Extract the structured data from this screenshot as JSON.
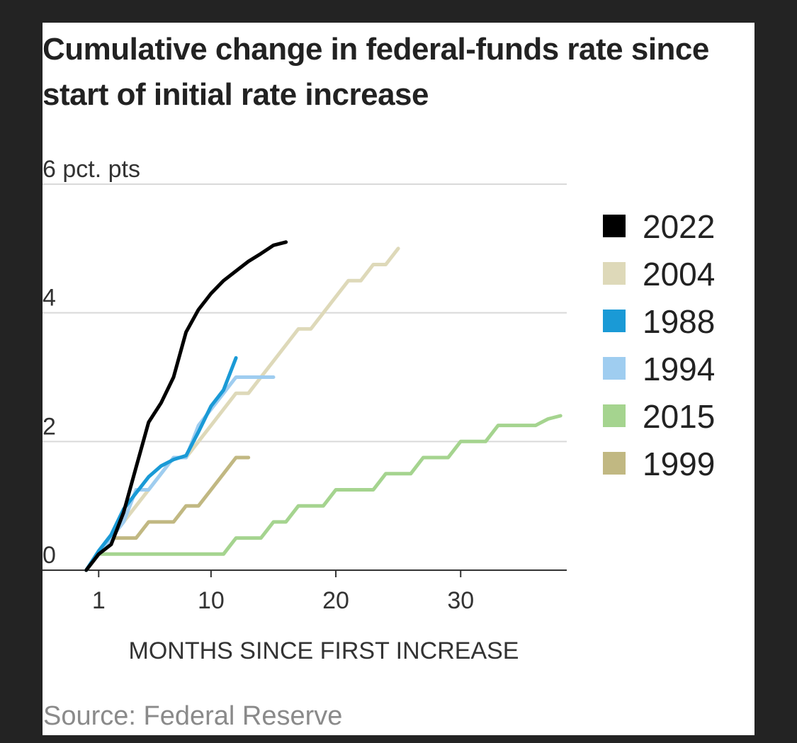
{
  "source": "Source: Federal Reserve",
  "chart_data": {
    "type": "line",
    "title": "Cumulative change in federal-funds rate since start of initial rate increase",
    "xlabel": "MONTHS SINCE FIRST INCREASE",
    "ylabel": "",
    "y_unit_label": "6 pct. pts",
    "xlim": [
      -3.5,
      38.5
    ],
    "ylim": [
      0,
      6
    ],
    "x_ticks": [
      1,
      10,
      20,
      30
    ],
    "x_tick_labels": [
      "1",
      "10",
      "20",
      "30"
    ],
    "y_ticks": [
      0,
      2,
      4,
      6
    ],
    "y_tick_labels": [
      "0",
      "2",
      "4",
      "6 pct. pts"
    ],
    "grid": true,
    "legend_position": "right",
    "series": [
      {
        "name": "2022",
        "color": "#000000",
        "x": [
          0,
          1,
          2,
          3,
          4,
          5,
          6,
          7,
          8,
          9,
          10,
          11,
          12,
          13,
          14,
          15,
          16
        ],
        "y": [
          0,
          0.25,
          0.4,
          0.9,
          1.6,
          2.3,
          2.6,
          3.0,
          3.7,
          4.05,
          4.3,
          4.5,
          4.65,
          4.8,
          4.92,
          5.05,
          5.1
        ]
      },
      {
        "name": "2004",
        "color": "#ded9b9",
        "x": [
          0,
          1,
          2,
          3,
          4,
          5,
          6,
          7,
          8,
          9,
          10,
          11,
          12,
          13,
          14,
          15,
          16,
          17,
          18,
          19,
          20,
          21,
          22,
          23,
          24,
          25
        ],
        "y": [
          0,
          0.25,
          0.5,
          0.75,
          1.0,
          1.25,
          1.5,
          1.75,
          1.75,
          2.0,
          2.25,
          2.5,
          2.75,
          2.75,
          3.0,
          3.25,
          3.5,
          3.75,
          3.75,
          4.0,
          4.25,
          4.5,
          4.5,
          4.75,
          4.75,
          5.0
        ]
      },
      {
        "name": "1988",
        "color": "#1a9ad6",
        "x": [
          0,
          1,
          2,
          3,
          4,
          5,
          6,
          7,
          8,
          9,
          10,
          11,
          12
        ],
        "y": [
          0,
          0.3,
          0.55,
          0.95,
          1.2,
          1.45,
          1.62,
          1.72,
          1.78,
          2.15,
          2.55,
          2.8,
          3.3
        ]
      },
      {
        "name": "1994",
        "color": "#9fcdf0",
        "x": [
          0,
          1,
          2,
          3,
          4,
          5,
          6,
          7,
          8,
          9,
          10,
          11,
          12,
          13,
          14,
          15
        ],
        "y": [
          0,
          0.25,
          0.5,
          0.75,
          1.25,
          1.25,
          1.5,
          1.75,
          1.75,
          2.25,
          2.5,
          2.75,
          3.0,
          3.0,
          3.0,
          3.0
        ]
      },
      {
        "name": "2015",
        "color": "#a5d48f",
        "x": [
          0,
          1,
          2,
          3,
          4,
          5,
          6,
          7,
          8,
          9,
          10,
          11,
          12,
          13,
          14,
          15,
          16,
          17,
          18,
          19,
          20,
          21,
          22,
          23,
          24,
          25,
          26,
          27,
          28,
          29,
          30,
          31,
          32,
          33,
          34,
          35,
          36,
          37,
          38
        ],
        "y": [
          0,
          0.25,
          0.25,
          0.25,
          0.25,
          0.25,
          0.25,
          0.25,
          0.25,
          0.25,
          0.25,
          0.25,
          0.5,
          0.5,
          0.5,
          0.75,
          0.75,
          1.0,
          1.0,
          1.0,
          1.25,
          1.25,
          1.25,
          1.25,
          1.5,
          1.5,
          1.5,
          1.75,
          1.75,
          1.75,
          2.0,
          2.0,
          2.0,
          2.25,
          2.25,
          2.25,
          2.25,
          2.35,
          2.4
        ]
      },
      {
        "name": "1999",
        "color": "#c1b882",
        "x": [
          0,
          1,
          2,
          3,
          4,
          5,
          6,
          7,
          8,
          9,
          10,
          11,
          12,
          13
        ],
        "y": [
          0,
          0.25,
          0.5,
          0.5,
          0.5,
          0.75,
          0.75,
          0.75,
          1.0,
          1.0,
          1.25,
          1.5,
          1.75,
          1.75
        ]
      }
    ]
  }
}
